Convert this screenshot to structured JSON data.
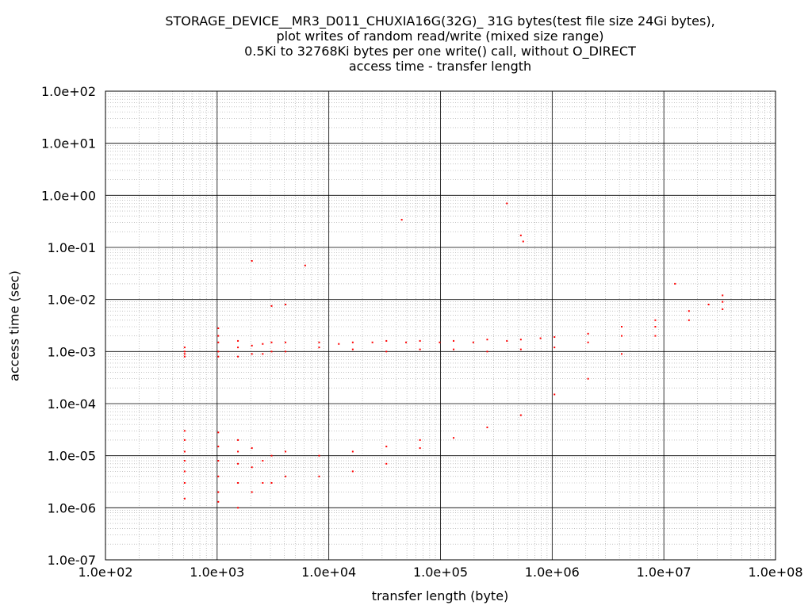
{
  "chart_data": {
    "type": "scatter",
    "title_lines": [
      "STORAGE_DEVICE__MR3_D011_CHUXIA16G(32G)_ 31G bytes(test file size 24Gi bytes),",
      "plot writes of random read/write (mixed size range)",
      "0.5Ki to 32768Ki bytes per one write() call, without O_DIRECT",
      "access time - transfer length"
    ],
    "xlabel": "transfer length (byte)",
    "ylabel": "access time (sec)",
    "x_scale": "log",
    "y_scale": "log",
    "xlim": [
      100,
      100000000
    ],
    "ylim": [
      1e-07,
      100
    ],
    "x_ticks": [
      "1.0e+02",
      "1.0e+03",
      "1.0e+04",
      "1.0e+05",
      "1.0e+06",
      "1.0e+07",
      "1.0e+08"
    ],
    "y_ticks": [
      "1.0e-07",
      "1.0e-06",
      "1.0e-05",
      "1.0e-04",
      "1.0e-03",
      "1.0e-02",
      "1.0e-01",
      "1.0e+00",
      "1.0e+01",
      "1.0e+02"
    ],
    "grid": true,
    "legend": "none",
    "series": [
      {
        "color": "#ff0000",
        "points": [
          [
            512,
            0.0008
          ],
          [
            512,
            0.001
          ],
          [
            512,
            0.0012
          ],
          [
            512,
            0.0009
          ],
          [
            512,
            1.5e-06
          ],
          [
            512,
            3e-06
          ],
          [
            512,
            5e-06
          ],
          [
            512,
            8e-06
          ],
          [
            512,
            1.2e-05
          ],
          [
            512,
            2e-05
          ],
          [
            512,
            3e-05
          ],
          [
            1024,
            0.0008
          ],
          [
            1024,
            0.001
          ],
          [
            1024,
            0.0015
          ],
          [
            1024,
            0.002
          ],
          [
            1024,
            0.0028
          ],
          [
            1024,
            1.3e-06
          ],
          [
            1024,
            2e-06
          ],
          [
            1024,
            4e-06
          ],
          [
            1024,
            8e-06
          ],
          [
            1024,
            1.5e-05
          ],
          [
            1024,
            2.8e-05
          ],
          [
            1536,
            0.0008
          ],
          [
            1536,
            0.0012
          ],
          [
            1536,
            0.0016
          ],
          [
            1536,
            1e-06
          ],
          [
            1536,
            3e-06
          ],
          [
            1536,
            7e-06
          ],
          [
            1536,
            1.2e-05
          ],
          [
            1536,
            2e-05
          ],
          [
            2048,
            0.0009
          ],
          [
            2048,
            0.0013
          ],
          [
            2048,
            0.055
          ],
          [
            2048,
            2e-06
          ],
          [
            2048,
            6e-06
          ],
          [
            2048,
            1.4e-05
          ],
          [
            2560,
            0.0009
          ],
          [
            2560,
            0.0014
          ],
          [
            2560,
            3e-06
          ],
          [
            2560,
            8e-06
          ],
          [
            3072,
            0.001
          ],
          [
            3072,
            0.0015
          ],
          [
            3072,
            0.0075
          ],
          [
            3072,
            3e-06
          ],
          [
            3072,
            1e-05
          ],
          [
            4096,
            0.001
          ],
          [
            4096,
            0.0015
          ],
          [
            4096,
            0.008
          ],
          [
            4096,
            4e-06
          ],
          [
            4096,
            1.2e-05
          ],
          [
            6144,
            0.045
          ],
          [
            8192,
            0.0012
          ],
          [
            8192,
            0.0015
          ],
          [
            8192,
            4e-06
          ],
          [
            8192,
            1e-05
          ],
          [
            12288,
            0.0014
          ],
          [
            16384,
            0.0015
          ],
          [
            16384,
            0.0011
          ],
          [
            16384,
            5e-06
          ],
          [
            16384,
            1.2e-05
          ],
          [
            24576,
            0.0015
          ],
          [
            32768,
            0.0016
          ],
          [
            32768,
            0.001
          ],
          [
            32768,
            7e-06
          ],
          [
            32768,
            1.5e-05
          ],
          [
            45000,
            0.34
          ],
          [
            49152,
            0.0015
          ],
          [
            65536,
            0.0016
          ],
          [
            65536,
            0.0011
          ],
          [
            65536,
            1.4e-05
          ],
          [
            65536,
            2e-05
          ],
          [
            98304,
            0.0015
          ],
          [
            131072,
            0.0016
          ],
          [
            131072,
            0.0011
          ],
          [
            131072,
            2.2e-05
          ],
          [
            196608,
            0.0015
          ],
          [
            262144,
            0.0017
          ],
          [
            262144,
            0.001
          ],
          [
            262144,
            3.5e-05
          ],
          [
            393216,
            0.7
          ],
          [
            393216,
            0.0016
          ],
          [
            524288,
            0.17
          ],
          [
            550000,
            0.13
          ],
          [
            524288,
            0.0017
          ],
          [
            524288,
            0.0011
          ],
          [
            524288,
            6e-05
          ],
          [
            786432,
            0.0018
          ],
          [
            1048576,
            0.0019
          ],
          [
            1048576,
            0.0012
          ],
          [
            1048576,
            0.00015
          ],
          [
            2097152,
            0.0022
          ],
          [
            2097152,
            0.0015
          ],
          [
            2097152,
            0.0003
          ],
          [
            4194304,
            0.003
          ],
          [
            4194304,
            0.002
          ],
          [
            4194304,
            0.0009
          ],
          [
            8388608,
            0.004
          ],
          [
            8388608,
            0.003
          ],
          [
            8388608,
            0.002
          ],
          [
            12582912,
            0.02
          ],
          [
            16777216,
            0.006
          ],
          [
            16777216,
            0.004
          ],
          [
            25165824,
            0.008
          ],
          [
            33554432,
            0.012
          ],
          [
            33554432,
            0.009
          ],
          [
            33554432,
            0.0065
          ]
        ]
      }
    ]
  }
}
